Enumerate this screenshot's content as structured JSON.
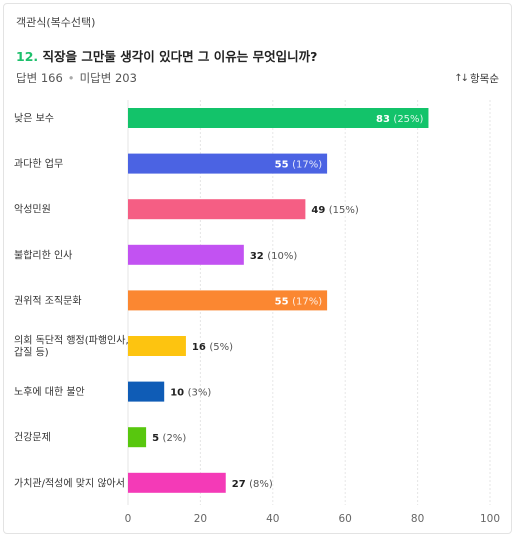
{
  "question": {
    "type_label": "객관식(복수선택)",
    "number": "12.",
    "text": "직장을 그만둘 생각이 있다면 그 이유는 무엇입니까?",
    "answered": "답변 166",
    "unanswered": "미답변 203",
    "separator": "•",
    "sort_label": "항목순",
    "sort_icon": "sort-arrows-icon"
  },
  "chart_data": {
    "type": "bar",
    "orientation": "horizontal",
    "categories": [
      [
        "낮은 보수"
      ],
      [
        "과다한 업무"
      ],
      [
        "악성민원"
      ],
      [
        "불합리한 인사"
      ],
      [
        "권위적 조직문화"
      ],
      [
        "의회 독단적 행정(파행인사,",
        "갑질 등)"
      ],
      [
        "노후에 대한 불안"
      ],
      [
        "건강문제"
      ],
      [
        "가치관/적성에 맞지 않아서"
      ]
    ],
    "values": [
      83,
      55,
      49,
      32,
      55,
      16,
      10,
      5,
      27
    ],
    "percent_labels": [
      "(25%)",
      "(17%)",
      "(15%)",
      "(10%)",
      "(17%)",
      "(5%)",
      "(3%)",
      "(2%)",
      "(8%)"
    ],
    "colors": [
      "#13c36a",
      "#4b63e3",
      "#f55e84",
      "#c252f2",
      "#fb8731",
      "#fdc410",
      "#0f5cb6",
      "#58c70e",
      "#f43ab7"
    ],
    "label_inside": [
      true,
      true,
      false,
      false,
      true,
      false,
      false,
      false,
      false
    ],
    "xlim": [
      0,
      100
    ],
    "xticks": [
      0,
      20,
      40,
      60,
      80,
      100
    ],
    "grid": true
  }
}
